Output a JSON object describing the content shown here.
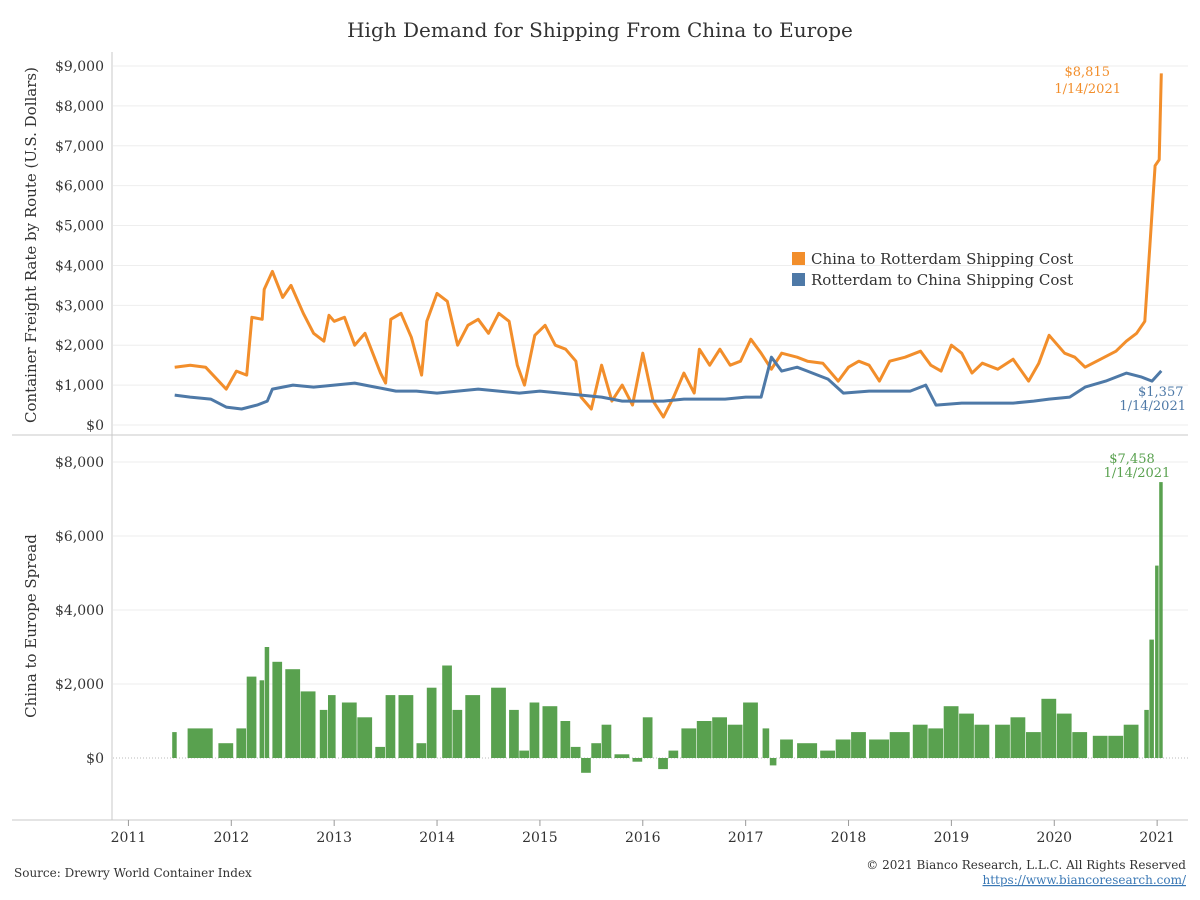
{
  "chart_data": [
    {
      "type": "line",
      "title": "High Demand for Shipping From China to Europe",
      "ylabel": "Container Freight Rate by Route (U.S. Dollars)",
      "ylim": [
        0,
        9000
      ],
      "yticks": [
        "$0",
        "$1,000",
        "$2,000",
        "$3,000",
        "$4,000",
        "$5,000",
        "$6,000",
        "$7,000",
        "$8,000",
        "$9,000"
      ],
      "legend_position": "center-right",
      "grid": true,
      "series": [
        {
          "name": "China to Rotterdam Shipping Cost",
          "color": "#f28e2b",
          "points": [
            [
              2011.45,
              1450
            ],
            [
              2011.6,
              1500
            ],
            [
              2011.75,
              1450
            ],
            [
              2011.95,
              900
            ],
            [
              2012.05,
              1350
            ],
            [
              2012.15,
              1250
            ],
            [
              2012.2,
              2700
            ],
            [
              2012.3,
              2650
            ],
            [
              2012.32,
              3400
            ],
            [
              2012.4,
              3850
            ],
            [
              2012.5,
              3200
            ],
            [
              2012.58,
              3500
            ],
            [
              2012.7,
              2800
            ],
            [
              2012.8,
              2300
            ],
            [
              2012.9,
              2100
            ],
            [
              2012.95,
              2750
            ],
            [
              2013.0,
              2600
            ],
            [
              2013.1,
              2700
            ],
            [
              2013.2,
              2000
            ],
            [
              2013.3,
              2300
            ],
            [
              2013.45,
              1300
            ],
            [
              2013.5,
              1050
            ],
            [
              2013.55,
              2650
            ],
            [
              2013.65,
              2800
            ],
            [
              2013.75,
              2200
            ],
            [
              2013.85,
              1250
            ],
            [
              2013.9,
              2600
            ],
            [
              2014.0,
              3300
            ],
            [
              2014.1,
              3100
            ],
            [
              2014.2,
              2000
            ],
            [
              2014.3,
              2500
            ],
            [
              2014.4,
              2650
            ],
            [
              2014.5,
              2300
            ],
            [
              2014.6,
              2800
            ],
            [
              2014.7,
              2600
            ],
            [
              2014.78,
              1500
            ],
            [
              2014.85,
              1000
            ],
            [
              2014.95,
              2250
            ],
            [
              2015.05,
              2500
            ],
            [
              2015.15,
              2000
            ],
            [
              2015.25,
              1900
            ],
            [
              2015.35,
              1600
            ],
            [
              2015.4,
              700
            ],
            [
              2015.5,
              400
            ],
            [
              2015.6,
              1500
            ],
            [
              2015.7,
              600
            ],
            [
              2015.8,
              1000
            ],
            [
              2015.9,
              500
            ],
            [
              2016.0,
              1800
            ],
            [
              2016.1,
              600
            ],
            [
              2016.2,
              200
            ],
            [
              2016.3,
              700
            ],
            [
              2016.4,
              1300
            ],
            [
              2016.5,
              800
            ],
            [
              2016.55,
              1900
            ],
            [
              2016.65,
              1500
            ],
            [
              2016.75,
              1900
            ],
            [
              2016.85,
              1500
            ],
            [
              2016.95,
              1600
            ],
            [
              2017.05,
              2150
            ],
            [
              2017.15,
              1800
            ],
            [
              2017.25,
              1400
            ],
            [
              2017.35,
              1800
            ],
            [
              2017.5,
              1700
            ],
            [
              2017.6,
              1600
            ],
            [
              2017.75,
              1550
            ],
            [
              2017.9,
              1100
            ],
            [
              2018.0,
              1450
            ],
            [
              2018.1,
              1600
            ],
            [
              2018.2,
              1500
            ],
            [
              2018.3,
              1100
            ],
            [
              2018.4,
              1600
            ],
            [
              2018.55,
              1700
            ],
            [
              2018.7,
              1850
            ],
            [
              2018.8,
              1500
            ],
            [
              2018.9,
              1350
            ],
            [
              2019.0,
              2000
            ],
            [
              2019.1,
              1800
            ],
            [
              2019.2,
              1300
            ],
            [
              2019.3,
              1550
            ],
            [
              2019.45,
              1400
            ],
            [
              2019.6,
              1650
            ],
            [
              2019.75,
              1100
            ],
            [
              2019.85,
              1550
            ],
            [
              2019.95,
              2250
            ],
            [
              2020.1,
              1800
            ],
            [
              2020.2,
              1700
            ],
            [
              2020.3,
              1450
            ],
            [
              2020.45,
              1650
            ],
            [
              2020.6,
              1850
            ],
            [
              2020.7,
              2100
            ],
            [
              2020.8,
              2300
            ],
            [
              2020.88,
              2600
            ],
            [
              2020.93,
              4500
            ],
            [
              2020.98,
              6500
            ],
            [
              2021.02,
              6650
            ],
            [
              2021.04,
              8815
            ]
          ],
          "end_label": "$8,815",
          "end_date": "1/14/2021"
        },
        {
          "name": "Rotterdam to China Shipping Cost",
          "color": "#4e79a7",
          "points": [
            [
              2011.45,
              750
            ],
            [
              2011.6,
              700
            ],
            [
              2011.8,
              650
            ],
            [
              2011.95,
              450
            ],
            [
              2012.1,
              400
            ],
            [
              2012.25,
              500
            ],
            [
              2012.35,
              600
            ],
            [
              2012.4,
              900
            ],
            [
              2012.6,
              1000
            ],
            [
              2012.8,
              950
            ],
            [
              2013.0,
              1000
            ],
            [
              2013.2,
              1050
            ],
            [
              2013.4,
              950
            ],
            [
              2013.6,
              850
            ],
            [
              2013.8,
              850
            ],
            [
              2014.0,
              800
            ],
            [
              2014.2,
              850
            ],
            [
              2014.4,
              900
            ],
            [
              2014.6,
              850
            ],
            [
              2014.8,
              800
            ],
            [
              2015.0,
              850
            ],
            [
              2015.2,
              800
            ],
            [
              2015.4,
              750
            ],
            [
              2015.6,
              700
            ],
            [
              2015.8,
              600
            ],
            [
              2016.0,
              600
            ],
            [
              2016.2,
              600
            ],
            [
              2016.4,
              650
            ],
            [
              2016.6,
              650
            ],
            [
              2016.8,
              650
            ],
            [
              2017.0,
              700
            ],
            [
              2017.15,
              700
            ],
            [
              2017.25,
              1700
            ],
            [
              2017.35,
              1350
            ],
            [
              2017.5,
              1450
            ],
            [
              2017.6,
              1350
            ],
            [
              2017.8,
              1150
            ],
            [
              2017.95,
              800
            ],
            [
              2018.2,
              850
            ],
            [
              2018.4,
              850
            ],
            [
              2018.6,
              850
            ],
            [
              2018.75,
              1000
            ],
            [
              2018.85,
              500
            ],
            [
              2019.1,
              550
            ],
            [
              2019.4,
              550
            ],
            [
              2019.6,
              550
            ],
            [
              2019.8,
              600
            ],
            [
              2019.95,
              650
            ],
            [
              2020.15,
              700
            ],
            [
              2020.3,
              950
            ],
            [
              2020.5,
              1100
            ],
            [
              2020.7,
              1300
            ],
            [
              2020.85,
              1200
            ],
            [
              2020.95,
              1100
            ],
            [
              2021.04,
              1357
            ]
          ],
          "end_label": "$1,357",
          "end_date": "1/14/2021"
        }
      ]
    },
    {
      "type": "bar",
      "ylabel": "China to Europe Spread",
      "ylim": [
        -1500,
        8500
      ],
      "yticks": [
        "$0",
        "$2,000",
        "$4,000",
        "$6,000",
        "$8,000"
      ],
      "xlim": [
        2010.85,
        2021.3
      ],
      "xticks": [
        "2011",
        "2012",
        "2013",
        "2014",
        "2015",
        "2016",
        "2017",
        "2018",
        "2019",
        "2020",
        "2021"
      ],
      "color": "#59a14f",
      "series": [
        {
          "points": [
            [
              2011.45,
              700
            ],
            [
              2011.7,
              800
            ],
            [
              2011.95,
              400
            ],
            [
              2012.1,
              800
            ],
            [
              2012.2,
              2200
            ],
            [
              2012.3,
              2100
            ],
            [
              2012.35,
              3000
            ],
            [
              2012.45,
              2600
            ],
            [
              2012.6,
              2400
            ],
            [
              2012.75,
              1800
            ],
            [
              2012.9,
              1300
            ],
            [
              2012.98,
              1700
            ],
            [
              2013.15,
              1500
            ],
            [
              2013.3,
              1100
            ],
            [
              2013.45,
              300
            ],
            [
              2013.55,
              1700
            ],
            [
              2013.7,
              1700
            ],
            [
              2013.85,
              400
            ],
            [
              2013.95,
              1900
            ],
            [
              2014.1,
              2500
            ],
            [
              2014.2,
              1300
            ],
            [
              2014.35,
              1700
            ],
            [
              2014.6,
              1900
            ],
            [
              2014.75,
              1300
            ],
            [
              2014.85,
              200
            ],
            [
              2014.95,
              1500
            ],
            [
              2015.1,
              1400
            ],
            [
              2015.25,
              1000
            ],
            [
              2015.35,
              300
            ],
            [
              2015.45,
              -400
            ],
            [
              2015.55,
              400
            ],
            [
              2015.65,
              900
            ],
            [
              2015.8,
              100
            ],
            [
              2015.95,
              -100
            ],
            [
              2016.05,
              1100
            ],
            [
              2016.2,
              -300
            ],
            [
              2016.3,
              200
            ],
            [
              2016.45,
              800
            ],
            [
              2016.6,
              1000
            ],
            [
              2016.75,
              1100
            ],
            [
              2016.9,
              900
            ],
            [
              2017.05,
              1500
            ],
            [
              2017.2,
              800
            ],
            [
              2017.27,
              -200
            ],
            [
              2017.4,
              500
            ],
            [
              2017.6,
              400
            ],
            [
              2017.8,
              200
            ],
            [
              2017.95,
              500
            ],
            [
              2018.1,
              700
            ],
            [
              2018.3,
              500
            ],
            [
              2018.5,
              700
            ],
            [
              2018.7,
              900
            ],
            [
              2018.85,
              800
            ],
            [
              2019.0,
              1400
            ],
            [
              2019.15,
              1200
            ],
            [
              2019.3,
              900
            ],
            [
              2019.5,
              900
            ],
            [
              2019.65,
              1100
            ],
            [
              2019.8,
              700
            ],
            [
              2019.95,
              1600
            ],
            [
              2020.1,
              1200
            ],
            [
              2020.25,
              700
            ],
            [
              2020.45,
              600
            ],
            [
              2020.6,
              600
            ],
            [
              2020.75,
              900
            ],
            [
              2020.9,
              1300
            ],
            [
              2020.95,
              3200
            ],
            [
              2021.0,
              5200
            ],
            [
              2021.04,
              7458
            ]
          ]
        }
      ],
      "end_label": "$7,458",
      "end_date": "1/14/2021"
    }
  ],
  "footer": {
    "source": "Source: Drewry World Container Index",
    "copyright": "© 2021 Bianco Research, L.L.C. All Rights Reserved",
    "url": "https://www.biancoresearch.com/"
  }
}
